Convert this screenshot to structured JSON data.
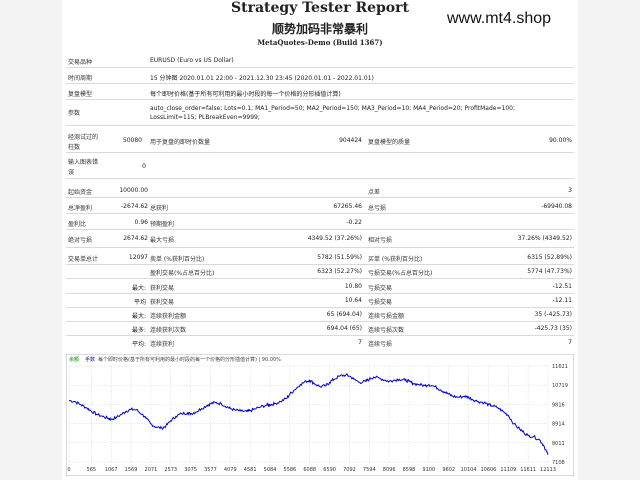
{
  "header": {
    "title": "Strategy Tester Report",
    "subtitle_cn": "顺势加码非常暴利",
    "subtitle": "MetaQuotes-Demo (Build 1367)",
    "watermark": "www.mt4.shop"
  },
  "info": {
    "symbol_label": "交易品种",
    "symbol_value": "EURUSD (Euro vs US Dollar)",
    "period_label": "时间周期",
    "period_value": "15 分钟图 2020.01.01 22:00 - 2021.12.30 23:45 (2020.01.01 - 2022.01.01)",
    "model_label": "复盘模型",
    "model_value": "每个即时价格(基于所有可利用的最小时段的每一个价格的分形插值计算)",
    "params_label": "参数",
    "params_value_1": "auto_close_order=false; Lots=0.1; MA1_Period=50; MA2_Period=150; MA3_Period=10; MA4_Period=20; ProfitMade=100;",
    "params_value_2": "LossLimit=115; PLBreakEven=9999;",
    "bars_label_1": "经测试过的",
    "bars_label_2": "柱数",
    "bars_value": "50080",
    "ticks_label": "用于复盘的即时价数量",
    "ticks_value": "904424",
    "quality_label": "复盘模型的质量",
    "quality_value": "90.00%",
    "mismatch_label_1": "输入图表错",
    "mismatch_label_2": "误",
    "mismatch_value": "0"
  },
  "stats": {
    "initial_deposit_label": "起始资金",
    "initial_deposit_value": "10000.00",
    "spread_label": "点差",
    "spread_value": "3",
    "net_profit_label": "总净盈利",
    "net_profit_value": "-2674.62",
    "gross_profit_label": "总获利",
    "gross_profit_value": "67265.46",
    "gross_loss_label": "总亏损",
    "gross_loss_value": "-69940.08",
    "profit_factor_label": "盈利比",
    "profit_factor_value": "0.96",
    "expected_payoff_label": "预期盈利",
    "expected_payoff_value": "-0.22",
    "abs_dd_label": "绝对亏损",
    "abs_dd_value": "2674.62",
    "max_dd_label": "最大亏损",
    "max_dd_value": "4349.52 (37.26%)",
    "rel_dd_label": "相对亏损",
    "rel_dd_value": "37.26% (4349.52)",
    "total_trades_label": "交易单总计",
    "total_trades_value": "12097",
    "short_label": "卖单 (%获利百分比)",
    "short_value": "5782 (51.59%)",
    "long_label": "买单 (%获利百分比)",
    "long_value": "6315 (52.89%)",
    "profit_trades_label": "盈利交易(%占总百分比)",
    "profit_trades_value": "6323 (52.27%)",
    "loss_trades_label": "亏损交易(%占总百分比)",
    "loss_trades_value": "5774 (47.73%)",
    "largest_label": "最大:",
    "largest_profit_label": "获利交易",
    "largest_profit_value": "10.80",
    "largest_loss_label": "亏损交易",
    "largest_loss_value": "-12.51",
    "average_label": "平均",
    "average_profit_label": "获利交易",
    "average_profit_value": "10.64",
    "average_loss_label": "亏损交易",
    "average_loss_value": "-12.11",
    "max_label": "最大:",
    "max_consec_wins_label": "连续获利金额",
    "max_consec_wins_value": "65 (694.04)",
    "max_consec_losses_label": "连续亏损金额",
    "max_consec_losses_value": "35 (-425.73)",
    "maximal_label": "最多:",
    "maximal_consec_profit_label": "连续获利次数",
    "maximal_consec_profit_value": "694.04 (65)",
    "maximal_consec_loss_label": "连续亏损次数",
    "maximal_consec_loss_value": "-425.73 (35)",
    "avg_consec_label": "平均:",
    "avg_consec_wins_label": "连续获利",
    "avg_consec_wins_value": "7",
    "avg_consec_losses_label": "连续亏损",
    "avg_consec_losses_value": "7"
  },
  "colors": {
    "line": "#0000cc",
    "grid": "#bbbbbb",
    "legend_green": "#008800",
    "legend_blue": "#0000cc"
  },
  "chart_data": {
    "type": "line",
    "legend": [
      "余额",
      "手数",
      "每个即时价格(基于所有可利用的最小时段的每一个价格的分形插值计算) | 90.00%"
    ],
    "x_ticks": [
      "0",
      "565",
      "1067",
      "1569",
      "2071",
      "2573",
      "3075",
      "3577",
      "4079",
      "4581",
      "5084",
      "5586",
      "6088",
      "6590",
      "7092",
      "7594",
      "8096",
      "8598",
      "9100",
      "9602",
      "10104",
      "10606",
      "11109",
      "11611",
      "12113"
    ],
    "x_range": [
      0,
      12113
    ],
    "y_ticks": [
      "11621",
      "10719",
      "9816",
      "8914",
      "8011",
      "7108"
    ],
    "y_range": [
      7108,
      11621
    ],
    "points": [
      [
        0,
        10000
      ],
      [
        150,
        9950
      ],
      [
        300,
        9800
      ],
      [
        450,
        9650
      ],
      [
        565,
        9500
      ],
      [
        700,
        9350
      ],
      [
        850,
        9250
      ],
      [
        1000,
        9150
      ],
      [
        1067,
        9120
      ],
      [
        1200,
        9200
      ],
      [
        1350,
        9380
      ],
      [
        1450,
        9500
      ],
      [
        1569,
        9580
      ],
      [
        1700,
        9560
      ],
      [
        1850,
        9350
      ],
      [
        1950,
        9150
      ],
      [
        2071,
        8900
      ],
      [
        2200,
        8750
      ],
      [
        2350,
        8700
      ],
      [
        2450,
        8800
      ],
      [
        2573,
        9050
      ],
      [
        2700,
        9250
      ],
      [
        2850,
        9380
      ],
      [
        3000,
        9420
      ],
      [
        3075,
        9380
      ],
      [
        3200,
        9450
      ],
      [
        3350,
        9620
      ],
      [
        3500,
        9780
      ],
      [
        3577,
        9850
      ],
      [
        3700,
        9900
      ],
      [
        3850,
        9850
      ],
      [
        4000,
        9700
      ],
      [
        4079,
        9620
      ],
      [
        4200,
        9550
      ],
      [
        4350,
        9500
      ],
      [
        4500,
        9480
      ],
      [
        4581,
        9520
      ],
      [
        4700,
        9600
      ],
      [
        4850,
        9700
      ],
      [
        5000,
        9780
      ],
      [
        5084,
        9800
      ],
      [
        5200,
        9850
      ],
      [
        5350,
        9950
      ],
      [
        5500,
        10100
      ],
      [
        5586,
        10300
      ],
      [
        5700,
        10500
      ],
      [
        5850,
        10750
      ],
      [
        6000,
        10900
      ],
      [
        6088,
        10950
      ],
      [
        6200,
        10800
      ],
      [
        6350,
        10650
      ],
      [
        6500,
        10700
      ],
      [
        6590,
        10850
      ],
      [
        6700,
        11000
      ],
      [
        6850,
        11150
      ],
      [
        7000,
        11200
      ],
      [
        7092,
        11150
      ],
      [
        7200,
        11000
      ],
      [
        7350,
        10850
      ],
      [
        7500,
        10900
      ],
      [
        7594,
        11000
      ],
      [
        7700,
        11100
      ],
      [
        7850,
        11050
      ],
      [
        8000,
        10950
      ],
      [
        8096,
        10900
      ],
      [
        8200,
        10950
      ],
      [
        8350,
        11000
      ],
      [
        8500,
        10950
      ],
      [
        8598,
        10900
      ],
      [
        8700,
        10800
      ],
      [
        8850,
        10750
      ],
      [
        9000,
        10700
      ],
      [
        9100,
        10750
      ],
      [
        9250,
        10650
      ],
      [
        9400,
        10500
      ],
      [
        9500,
        10400
      ],
      [
        9602,
        10300
      ],
      [
        9700,
        10200
      ],
      [
        9850,
        10150
      ],
      [
        10000,
        10200
      ],
      [
        10104,
        10150
      ],
      [
        10200,
        10050
      ],
      [
        10350,
        9950
      ],
      [
        10500,
        9900
      ],
      [
        10606,
        9800
      ],
      [
        10700,
        9750
      ],
      [
        10850,
        9650
      ],
      [
        11000,
        9450
      ],
      [
        11109,
        9300
      ],
      [
        11250,
        8900
      ],
      [
        11400,
        8650
      ],
      [
        11500,
        8500
      ],
      [
        11611,
        8350
      ],
      [
        11750,
        8300
      ],
      [
        11900,
        8150
      ],
      [
        12000,
        7900
      ],
      [
        12113,
        7450
      ]
    ]
  }
}
